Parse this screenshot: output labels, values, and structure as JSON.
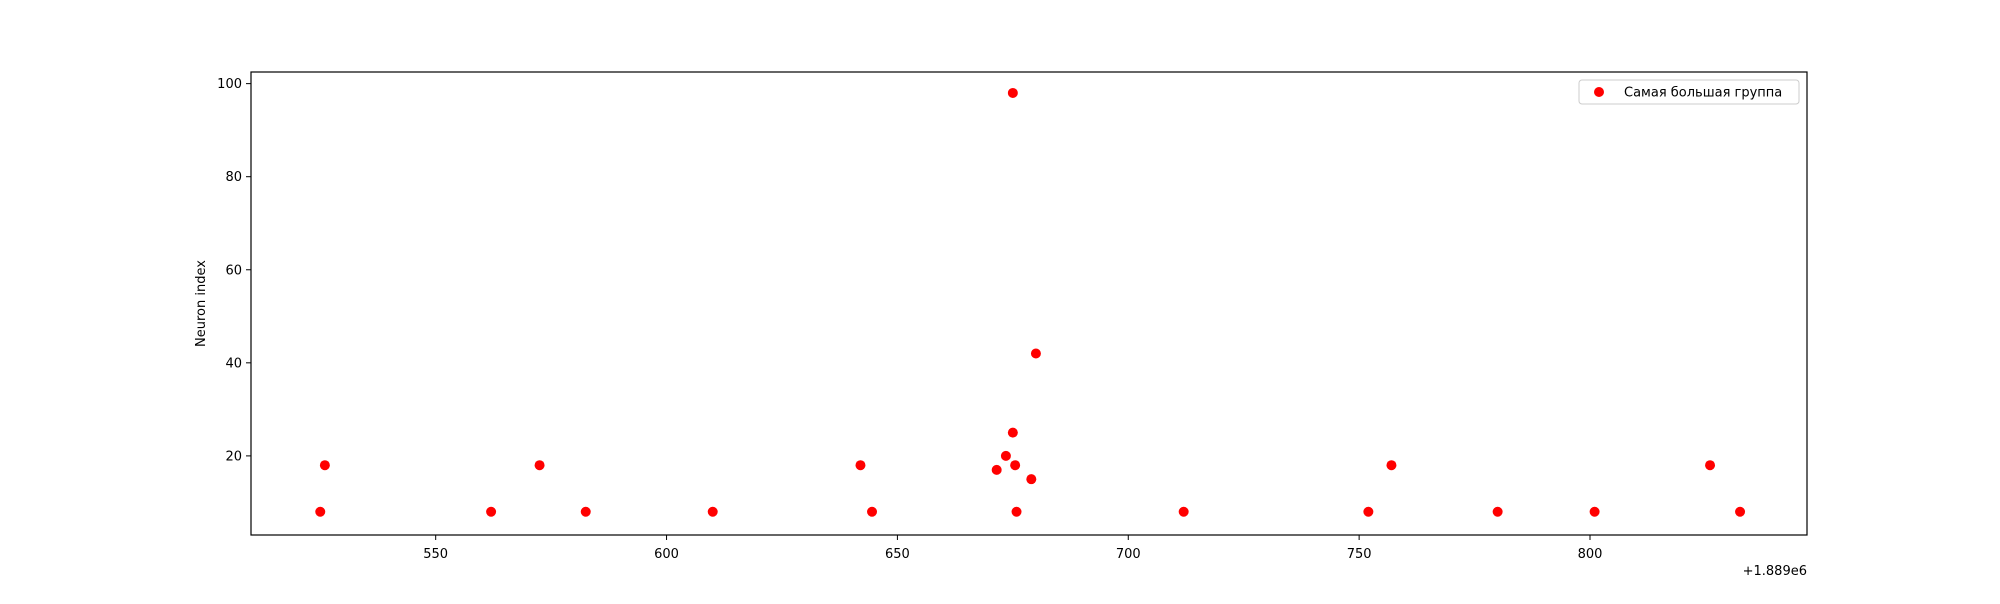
{
  "chart_data": {
    "type": "scatter",
    "title": "",
    "xlabel": "",
    "ylabel": "Neuron index",
    "x_offset_label": "+1.889e6",
    "xlim": [
      510,
      847
    ],
    "ylim": [
      3,
      102.5
    ],
    "x_ticks": [
      550,
      600,
      650,
      700,
      750,
      800
    ],
    "y_ticks": [
      20,
      40,
      60,
      80,
      100
    ],
    "grid": false,
    "legend_position": "top-right",
    "series": [
      {
        "name": "Самая большая группа",
        "color": "#ff0000",
        "points": [
          {
            "x": 525,
            "y": 8
          },
          {
            "x": 526,
            "y": 18
          },
          {
            "x": 562,
            "y": 8
          },
          {
            "x": 572.5,
            "y": 18
          },
          {
            "x": 582.5,
            "y": 8
          },
          {
            "x": 610,
            "y": 8
          },
          {
            "x": 642,
            "y": 18
          },
          {
            "x": 644.5,
            "y": 8
          },
          {
            "x": 671.5,
            "y": 17
          },
          {
            "x": 673.5,
            "y": 20
          },
          {
            "x": 675,
            "y": 98
          },
          {
            "x": 675,
            "y": 25
          },
          {
            "x": 675.5,
            "y": 18
          },
          {
            "x": 675.8,
            "y": 8
          },
          {
            "x": 679,
            "y": 15
          },
          {
            "x": 680,
            "y": 42
          },
          {
            "x": 712,
            "y": 8
          },
          {
            "x": 752,
            "y": 8
          },
          {
            "x": 757,
            "y": 18
          },
          {
            "x": 780,
            "y": 8
          },
          {
            "x": 801,
            "y": 8
          },
          {
            "x": 826,
            "y": 18
          },
          {
            "x": 832.5,
            "y": 8
          }
        ]
      }
    ]
  }
}
